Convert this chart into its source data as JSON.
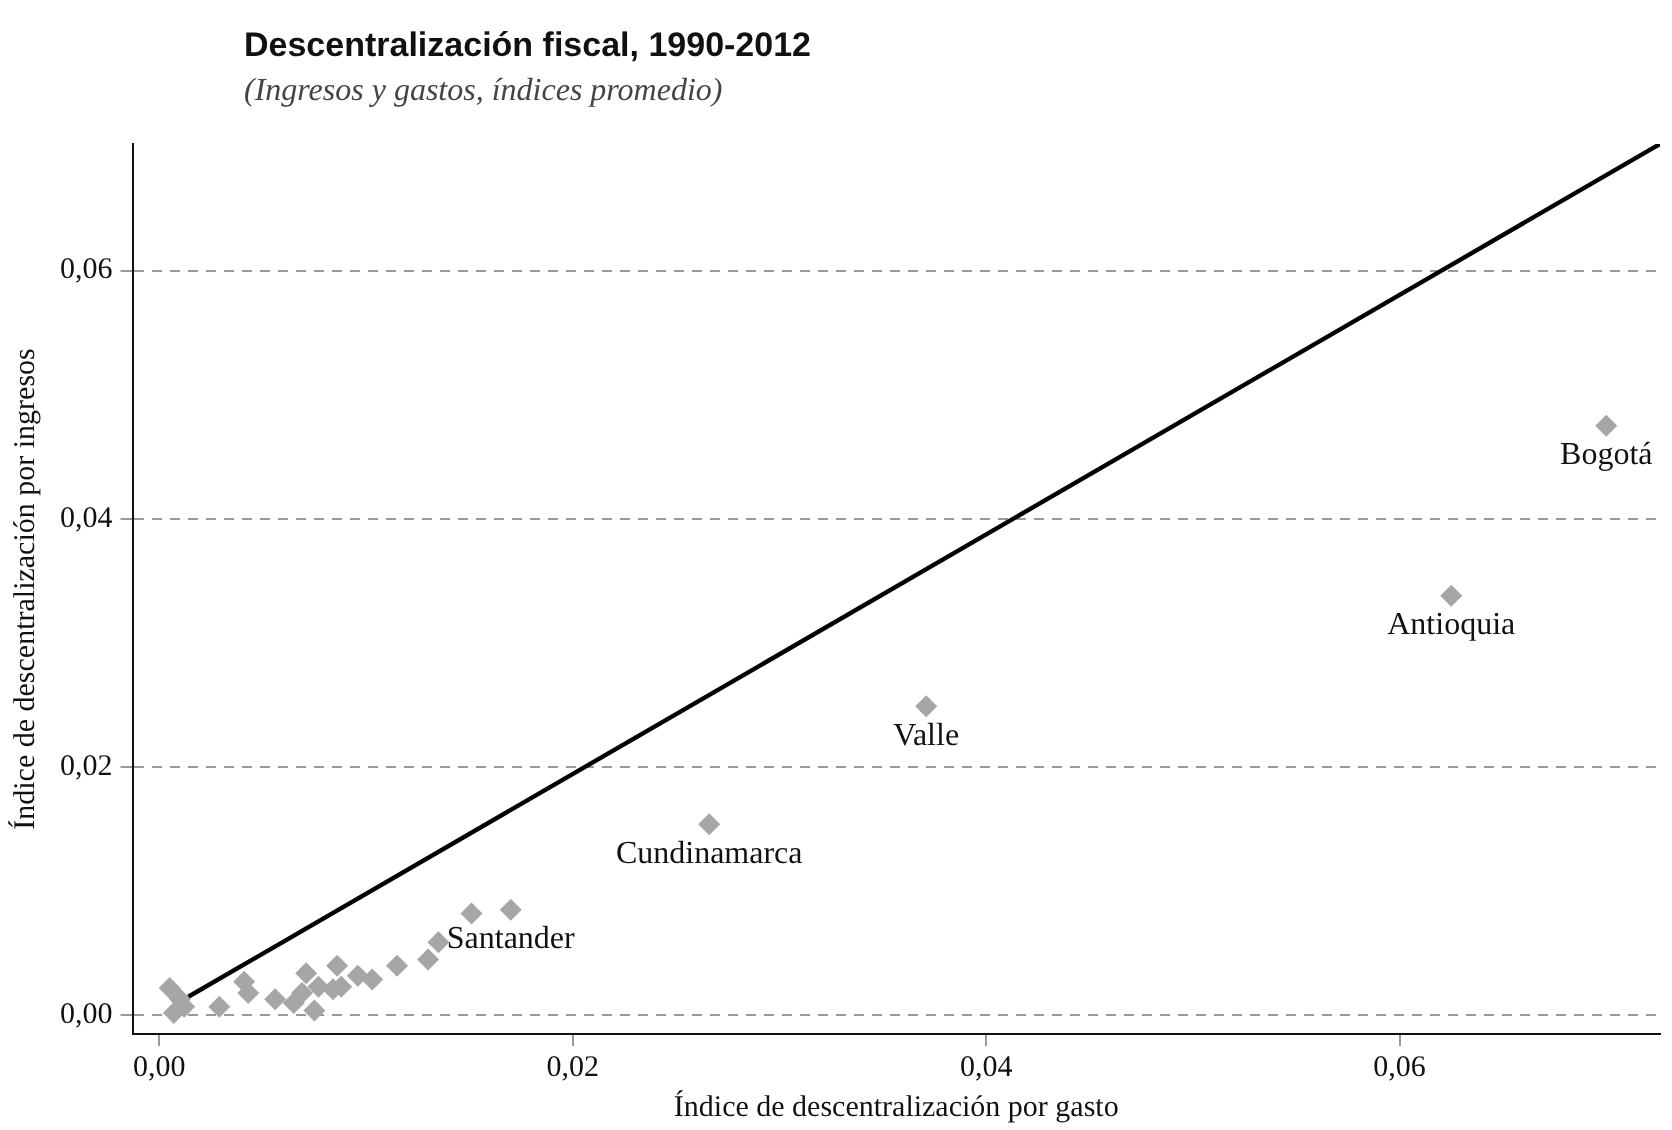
{
  "chart_data": {
    "type": "scatter",
    "title": "Descentralización fiscal, 1990-2012",
    "subtitle": "(Ingresos y gastos, índices promedio)",
    "xlabel": "Índice de descentralización por gasto",
    "ylabel": "Índice de descentralización por ingresos",
    "xlim": [
      -0.0013,
      0.0726
    ],
    "ylim": [
      -0.0015,
      0.0702
    ],
    "xticks": [
      {
        "value": 0,
        "label": "0,00"
      },
      {
        "value": 0.02,
        "label": "0,02"
      },
      {
        "value": 0.04,
        "label": "0,04"
      },
      {
        "value": 0.06,
        "label": "0,06"
      }
    ],
    "yticks": [
      {
        "value": 0,
        "label": "0,00"
      },
      {
        "value": 0.02,
        "label": "0,02"
      },
      {
        "value": 0.04,
        "label": "0,04"
      },
      {
        "value": 0.06,
        "label": "0,06"
      }
    ],
    "grid": "y",
    "legend": false,
    "marker": "diamond",
    "series": [
      {
        "type": "scatter",
        "color": "#a6a6a6",
        "x": [
          0.0005,
          0.0007,
          0.0012,
          0.001,
          0.0029,
          0.0041,
          0.0043,
          0.0056,
          0.0065,
          0.0071,
          0.0069,
          0.0075,
          0.0077,
          0.0084,
          0.0086,
          0.0088,
          0.0096,
          0.0103,
          0.0115,
          0.013,
          0.0135,
          0.0151,
          0.017,
          0.0266,
          0.0371,
          0.0625,
          0.07
        ],
        "values": [
          0.0022,
          0.0002,
          0.0007,
          0.0013,
          0.0007,
          0.0027,
          0.0018,
          0.0013,
          0.001,
          0.0034,
          0.0018,
          0.0004,
          0.0023,
          0.0021,
          0.004,
          0.0023,
          0.0032,
          0.0029,
          0.004,
          0.0045,
          0.0059,
          0.0082,
          0.0085,
          0.0154,
          0.0249,
          0.0338,
          0.0475
        ]
      },
      {
        "type": "line",
        "color": "#000000",
        "line_style": "solid",
        "marker": "none",
        "x": [
          0.0014,
          0.0726
        ],
        "values": [
          0.0015,
          0.0702
        ]
      }
    ],
    "annotations": [
      {
        "text": "Santander",
        "x": 0.017,
        "y": 0.0085
      },
      {
        "text": "Cundinamarca",
        "x": 0.0266,
        "y": 0.0154
      },
      {
        "text": "Valle",
        "x": 0.0371,
        "y": 0.0249
      },
      {
        "text": "Antioquia",
        "x": 0.0625,
        "y": 0.0338
      },
      {
        "text": "Bogotá",
        "x": 0.07,
        "y": 0.0475
      }
    ]
  }
}
